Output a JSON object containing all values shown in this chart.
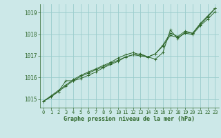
{
  "title": "Graphe pression niveau de la mer (hPa)",
  "background_color": "#cce8e8",
  "grid_color": "#99cccc",
  "line_color": "#2d6629",
  "marker_color": "#2d6629",
  "xlim": [
    -0.5,
    23.5
  ],
  "ylim": [
    1014.6,
    1019.4
  ],
  "yticks": [
    1015,
    1016,
    1017,
    1018,
    1019
  ],
  "xticks": [
    0,
    1,
    2,
    3,
    4,
    5,
    6,
    7,
    8,
    9,
    10,
    11,
    12,
    13,
    14,
    15,
    16,
    17,
    18,
    19,
    20,
    21,
    22,
    23
  ],
  "series": [
    [
      1014.9,
      1015.1,
      1015.35,
      1015.85,
      1015.85,
      1015.95,
      1016.1,
      1016.25,
      1016.45,
      1016.6,
      1016.75,
      1016.95,
      1017.05,
      1017.1,
      1016.95,
      1016.85,
      1017.15,
      1018.2,
      1017.8,
      1018.1,
      1018.05,
      1018.45,
      1018.8,
      1019.2
    ],
    [
      1014.9,
      1015.1,
      1015.35,
      1015.6,
      1015.85,
      1016.05,
      1016.2,
      1016.35,
      1016.5,
      1016.65,
      1016.8,
      1016.95,
      1017.05,
      1017.0,
      1016.95,
      1017.1,
      1017.45,
      1017.95,
      1017.85,
      1018.05,
      1018.0,
      1018.4,
      1018.7,
      1019.05
    ],
    [
      1014.9,
      1015.15,
      1015.4,
      1015.65,
      1015.9,
      1016.1,
      1016.25,
      1016.4,
      1016.55,
      1016.7,
      1016.9,
      1017.05,
      1017.15,
      1017.05,
      1016.95,
      1017.1,
      1017.5,
      1018.05,
      1017.9,
      1018.15,
      1018.05,
      1018.5,
      1018.85,
      1019.2
    ]
  ]
}
